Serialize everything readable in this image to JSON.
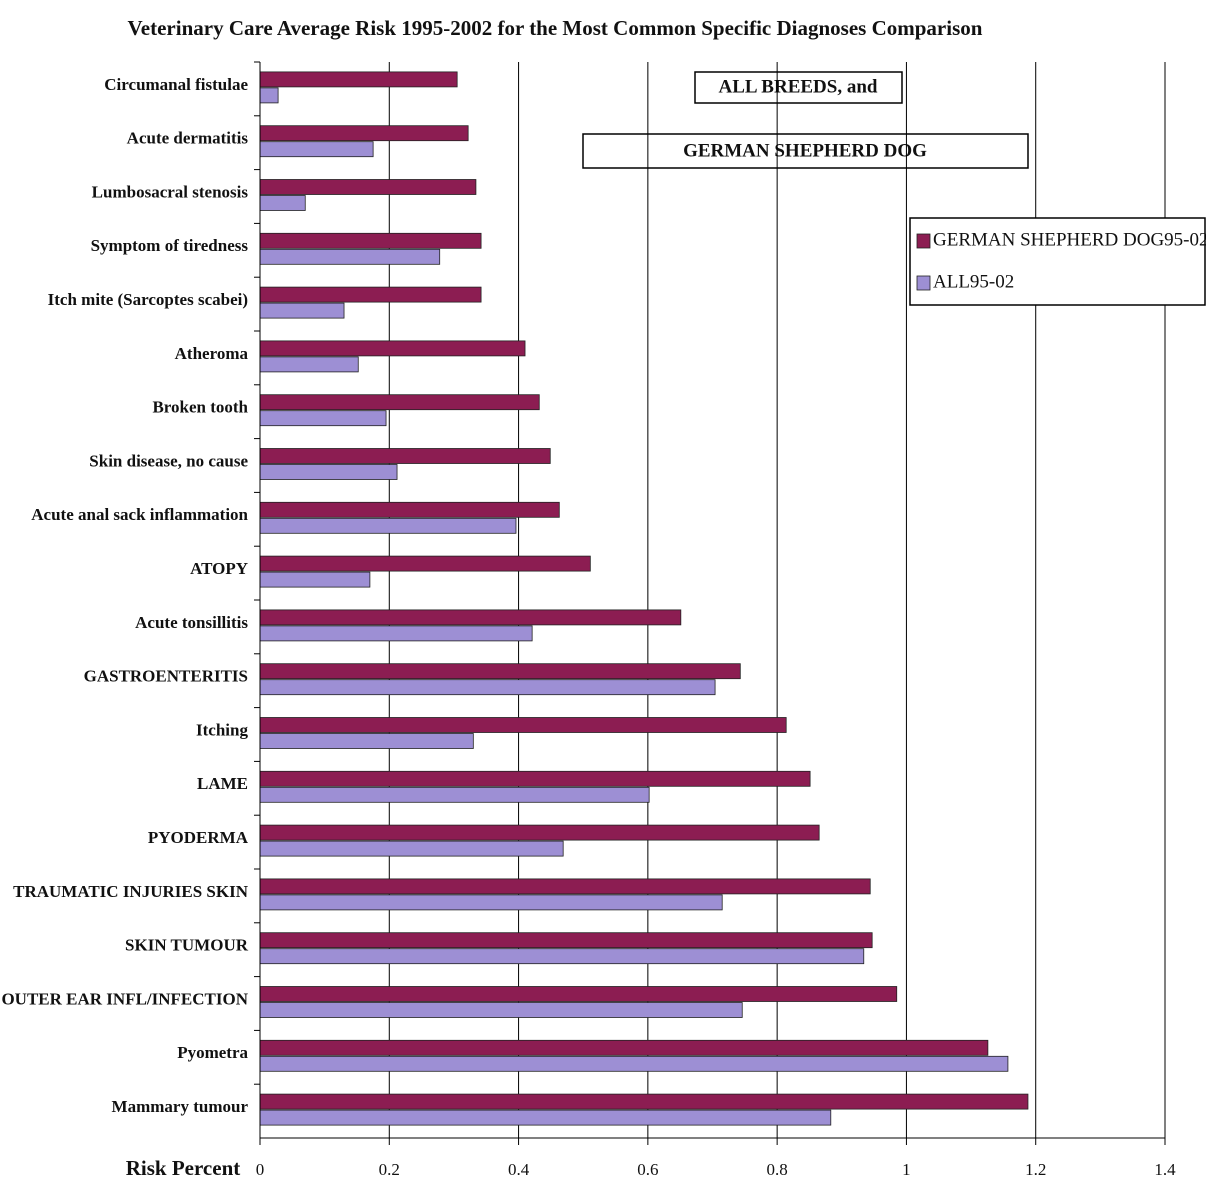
{
  "chart_data": {
    "type": "barh",
    "title": "Veterinary Care Average Risk 1995-2002 for the Most Common Specific Diagnoses Comparison",
    "annotations": [
      "ALL BREEDS, and",
      "GERMAN SHEPHERD DOG"
    ],
    "x_label": "Risk Percent",
    "categories": [
      "Circumanal fistulae",
      "Acute dermatitis",
      "Lumbosacral stenosis",
      "Symptom of tiredness",
      "Itch mite (Sarcoptes scabei)",
      "Atheroma",
      "Broken tooth",
      "Skin disease, no cause",
      "Acute anal sack inflammation",
      "ATOPY",
      "Acute tonsillitis",
      "GASTROENTERITIS",
      "Itching",
      "LAME",
      "PYODERMA",
      "TRAUMATIC INJURIES SKIN",
      "SKIN TUMOUR",
      "OUTER EAR INFL/INFECTION",
      "Pyometra",
      "Mammary tumour"
    ],
    "series": [
      {
        "name": "GERMAN SHEPHERD DOG95-02",
        "color": "#8c1d52",
        "values": [
          0.305,
          0.322,
          0.334,
          0.342,
          0.342,
          0.41,
          0.432,
          0.449,
          0.463,
          0.511,
          0.651,
          0.743,
          0.814,
          0.851,
          0.865,
          0.944,
          0.947,
          0.985,
          1.126,
          1.188
        ]
      },
      {
        "name": "ALL95-02",
        "color": "#9d8fd4",
        "values": [
          0.028,
          0.175,
          0.07,
          0.278,
          0.13,
          0.152,
          0.195,
          0.212,
          0.396,
          0.17,
          0.421,
          0.704,
          0.33,
          0.602,
          0.469,
          0.715,
          0.934,
          0.746,
          1.157,
          0.883
        ]
      }
    ],
    "xlim": [
      0,
      1.4
    ],
    "xticks": [
      0,
      0.2,
      0.4,
      0.6,
      0.8,
      1,
      1.2,
      1.4
    ],
    "grid": true
  }
}
